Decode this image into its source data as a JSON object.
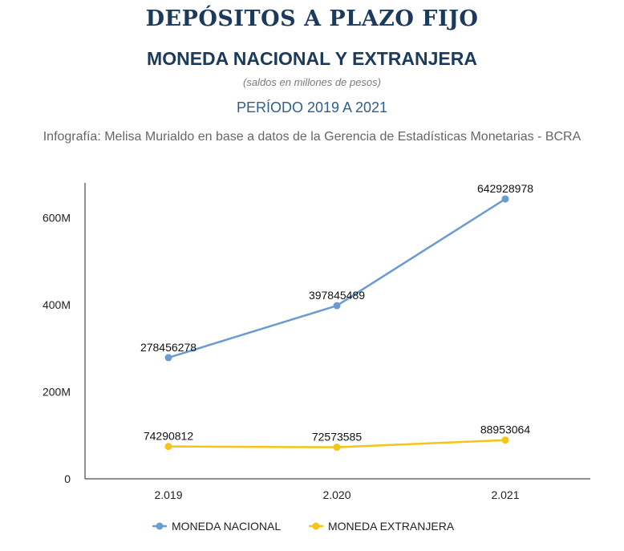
{
  "header": {
    "title": "DEPÓSITOS A PLAZO FIJO",
    "subtitle": "MONEDA NACIONAL Y EXTRANJERA",
    "units": "(saldos en millones de pesos)",
    "period": "PERÍODO 2019 A 2021",
    "source": "Infografía: Melisa Murialdo en base a datos de la Gerencia de Estadísticas Monetarias - BCRA"
  },
  "chart_data": {
    "type": "line",
    "categories": [
      "2.019",
      "2.020",
      "2.021"
    ],
    "series": [
      {
        "name": "MONEDA NACIONAL",
        "color": "#6a9bd1",
        "values": [
          278456278,
          397845489,
          642928978
        ]
      },
      {
        "name": "MONEDA EXTRANJERA",
        "color": "#f4c518",
        "values": [
          74290812,
          72573585,
          88953064
        ]
      }
    ],
    "ylim": [
      0,
      680000000
    ],
    "yticks": [
      0,
      200000000,
      400000000,
      600000000
    ],
    "ytick_labels": [
      "0",
      "200M",
      "400M",
      "600M"
    ],
    "grid": false,
    "legend_position": "bottom-center",
    "data_labels": true
  }
}
